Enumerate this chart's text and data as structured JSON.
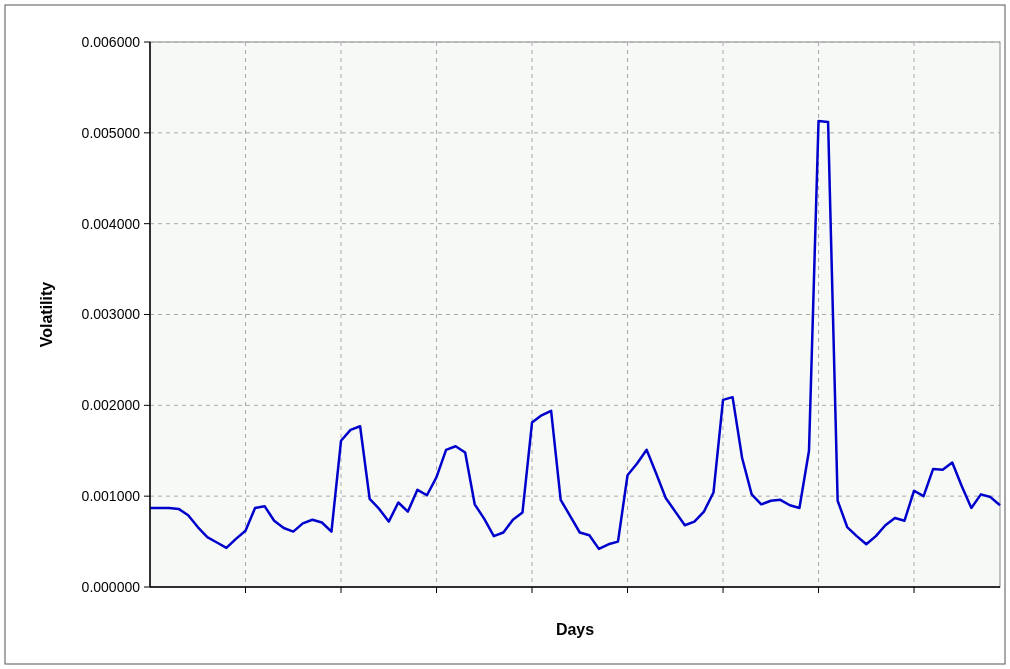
{
  "chart_data": {
    "type": "line",
    "xlabel": "Days",
    "ylabel": "Volatility",
    "ylim": [
      0,
      0.006
    ],
    "categories": [
      null,
      null,
      null,
      null,
      null,
      null,
      null,
      null,
      null,
      null,
      null,
      null,
      null,
      null,
      null,
      null,
      null,
      null,
      null,
      null,
      null,
      null,
      null,
      null,
      null,
      null,
      null,
      null,
      null,
      null,
      null,
      null,
      null,
      null,
      null,
      null,
      null,
      null,
      null,
      null,
      null,
      null,
      null,
      null,
      null,
      null,
      null,
      null,
      null,
      null,
      null,
      null,
      null,
      null,
      null,
      null,
      null,
      null,
      null,
      null,
      null,
      null,
      null,
      null,
      null,
      null,
      null,
      null,
      null,
      null,
      null,
      null,
      null,
      null,
      null,
      null,
      null,
      null,
      null,
      null,
      null,
      null,
      null,
      null,
      null,
      null,
      null,
      null,
      null,
      null
    ],
    "yticks": [
      {
        "value": 0,
        "label": "0.000000"
      },
      {
        "value": 0.001,
        "label": "0.001000"
      },
      {
        "value": 0.002,
        "label": "0.002000"
      },
      {
        "value": 0.003,
        "label": "0.003000"
      },
      {
        "value": 0.004,
        "label": "0.004000"
      },
      {
        "value": 0.005,
        "label": "0.005000"
      },
      {
        "value": 0.006,
        "label": "0.006000"
      }
    ],
    "tick_labels": "y",
    "grid": true,
    "marker": "none",
    "line_style": "solid",
    "series": [
      {
        "color": "#0000cc",
        "values": [
          0.00087,
          0.00087,
          0.00087,
          0.00086,
          0.00079,
          0.00066,
          0.00055,
          0.00049,
          0.00043,
          0.00053,
          0.00062,
          0.00087,
          0.00089,
          0.00073,
          0.00065,
          0.00061,
          0.0007,
          0.00074,
          0.00071,
          0.00061,
          0.00161,
          0.00173,
          0.00177,
          0.00097,
          0.00086,
          0.00072,
          0.00093,
          0.00083,
          0.00107,
          0.00101,
          0.00121,
          0.00151,
          0.00155,
          0.00148,
          0.00091,
          0.00075,
          0.00056,
          0.0006,
          0.00074,
          0.00082,
          0.00181,
          0.00189,
          0.00194,
          0.00096,
          0.00078,
          0.0006,
          0.00057,
          0.00042,
          0.00047,
          0.0005,
          0.00123,
          0.00136,
          0.00151,
          0.00125,
          0.00098,
          0.00083,
          0.00068,
          0.00072,
          0.00083,
          0.00104,
          0.00206,
          0.00209,
          0.00142,
          0.00102,
          0.00091,
          0.00095,
          0.00096,
          0.0009,
          0.00087,
          0.0015,
          0.00513,
          0.00512,
          0.00095,
          0.00066,
          0.00056,
          0.00047,
          0.00056,
          0.00068,
          0.00076,
          0.00073,
          0.00106,
          0.001,
          0.0013,
          0.00129,
          0.00137,
          0.00111,
          0.00087,
          0.00102,
          0.00099,
          0.0009
        ]
      }
    ]
  }
}
